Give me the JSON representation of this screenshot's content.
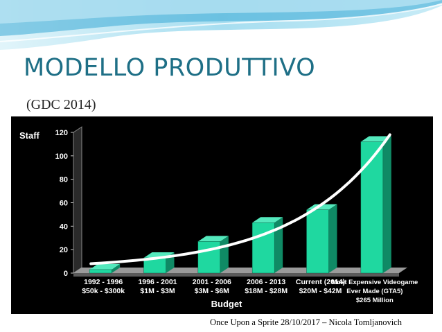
{
  "slide": {
    "title": "MODELLO PRODUTTIVO",
    "subtitle": "(GDC 2014)",
    "footer": "Once Upon a Sprite 28/10/2017 – Nicola Tomljanovich"
  },
  "colors": {
    "title": "#1e6f86",
    "bar_front": "#1fd8a0",
    "bar_side": "#0f8a65",
    "panel": "#000000",
    "trend": "#ffffff"
  },
  "chart_data": {
    "type": "bar",
    "ylabel": "Staff",
    "xlabel": "Budget",
    "ylim": [
      0,
      120
    ],
    "yticks": [
      0,
      20,
      40,
      60,
      80,
      100,
      120
    ],
    "categories": [
      [
        "1992 - 1996",
        "$50k - $300k"
      ],
      [
        "1996 - 2001",
        "$1M - $3M"
      ],
      [
        "2001 - 2006",
        "$3M - $6M"
      ],
      [
        "2006 - 2013",
        "$18M - $28M"
      ],
      [
        "Current (2014)",
        "$20M - $42M"
      ],
      [
        "Most Expensive Videogame",
        "Ever Made (GTA5)",
        "$265 Million"
      ]
    ],
    "values": [
      3,
      13,
      27,
      43,
      54,
      112
    ],
    "trendline": true,
    "grid": false,
    "style": "3d"
  }
}
